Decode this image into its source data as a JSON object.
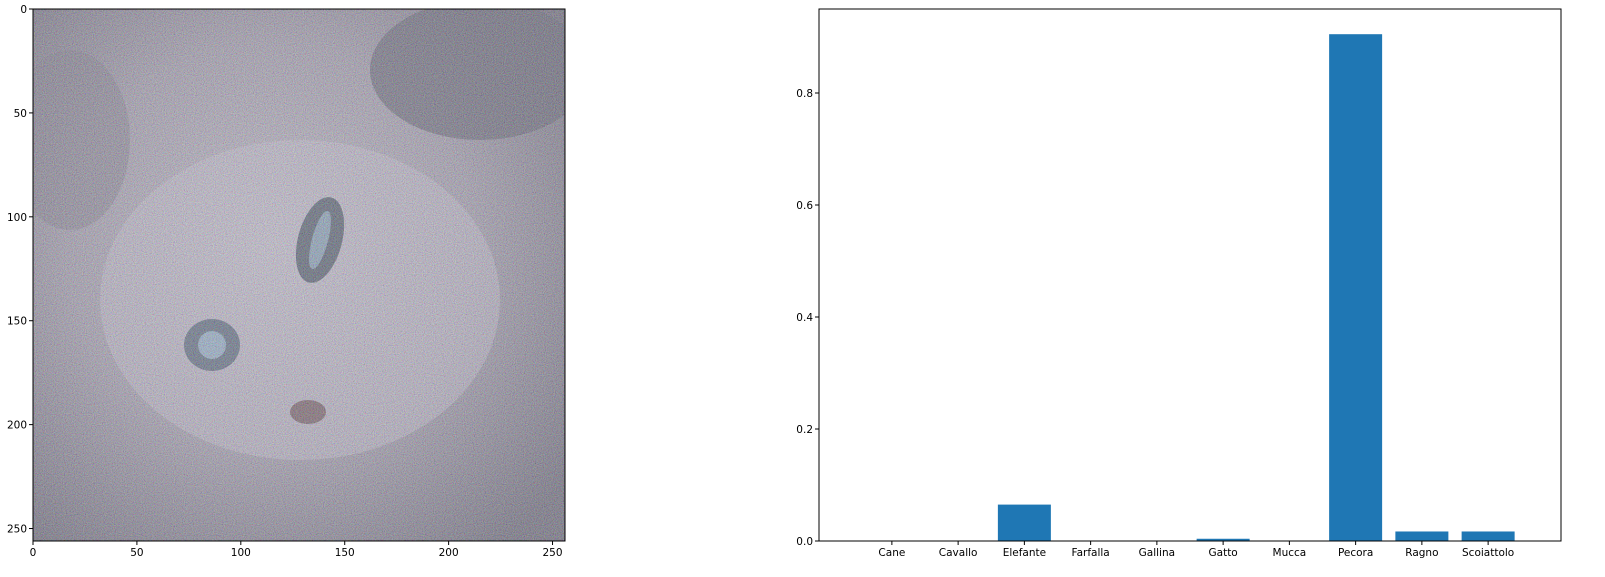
{
  "chart_data": [
    {
      "type": "image",
      "subject": "noisy adversarial image of a kitten",
      "xlim": [
        0,
        256
      ],
      "ylim": [
        256,
        0
      ],
      "x_ticks": [
        0,
        50,
        100,
        150,
        200,
        250
      ],
      "y_ticks": [
        0,
        50,
        100,
        150,
        200,
        250
      ],
      "x_tick_labels": [
        "0",
        "50",
        "100",
        "150",
        "200",
        "250"
      ],
      "y_tick_labels": [
        "0",
        "50",
        "100",
        "150",
        "200",
        "250"
      ]
    },
    {
      "type": "bar",
      "categories": [
        "Cane",
        "Cavallo",
        "Elefante",
        "Farfalla",
        "Gallina",
        "Gatto",
        "Mucca",
        "Pecora",
        "Ragno",
        "Scoiattolo"
      ],
      "values": [
        0.0003,
        0.0003,
        0.065,
        0.0003,
        0.0003,
        0.004,
        0.0003,
        0.905,
        0.017,
        0.017
      ],
      "ylim": [
        0,
        0.95
      ],
      "y_ticks": [
        0,
        0.2,
        0.4,
        0.6,
        0.8
      ],
      "y_tick_labels": [
        "0.0",
        "0.2",
        "0.4",
        "0.6",
        "0.8"
      ],
      "bar_color": "#1f77b4",
      "grid": false
    }
  ]
}
